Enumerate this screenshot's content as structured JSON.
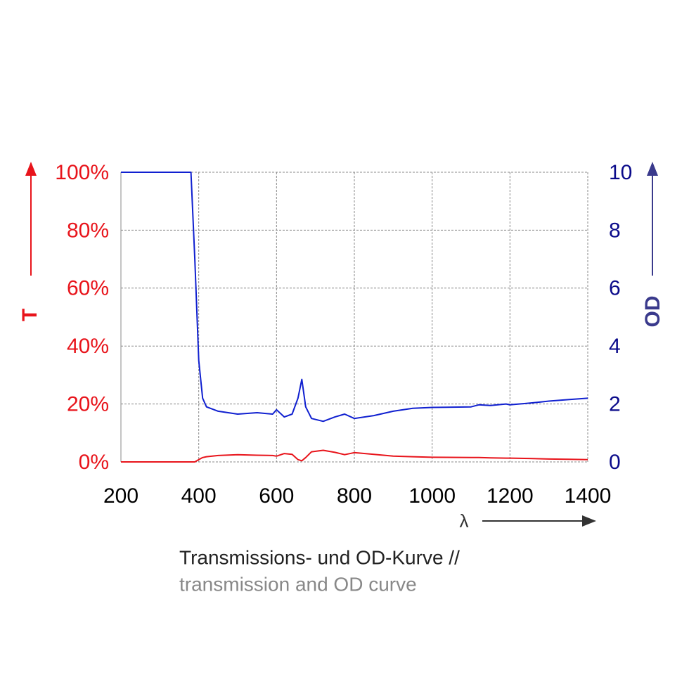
{
  "chart_data": {
    "type": "line",
    "x_label": "λ",
    "y_label": "T",
    "y2_label": "OD",
    "caption": [
      "Transmissions- und OD-Kurve //",
      "transmission and OD curve"
    ],
    "x": [
      200,
      300,
      380,
      390,
      400,
      410,
      420,
      450,
      500,
      550,
      590,
      600,
      620,
      640,
      655,
      665,
      675,
      690,
      720,
      750,
      775,
      800,
      850,
      900,
      950,
      1000,
      1100,
      1120,
      1150,
      1190,
      1200,
      1250,
      1300,
      1350,
      1400
    ],
    "series": [
      {
        "name": "T",
        "color": "#e8141b",
        "axis": "y",
        "values": [
          0,
          0,
          0,
          0,
          0.8,
          1.5,
          1.8,
          2.2,
          2.5,
          2.3,
          2.2,
          2.0,
          2.9,
          2.6,
          0.8,
          0.4,
          1.5,
          3.5,
          4.0,
          3.3,
          2.5,
          3.2,
          2.6,
          2.0,
          1.8,
          1.6,
          1.5,
          1.5,
          1.4,
          1.3,
          1.3,
          1.2,
          1.0,
          0.9,
          0.8
        ]
      },
      {
        "name": "OD",
        "color": "#1020d0",
        "axis": "y2",
        "values": [
          10,
          10,
          10,
          7,
          3.5,
          2.2,
          1.9,
          1.75,
          1.65,
          1.7,
          1.65,
          1.8,
          1.55,
          1.65,
          2.2,
          2.85,
          1.9,
          1.5,
          1.4,
          1.55,
          1.65,
          1.5,
          1.6,
          1.75,
          1.85,
          1.88,
          1.9,
          1.97,
          1.95,
          2.0,
          1.97,
          2.03,
          2.1,
          2.15,
          2.2
        ]
      }
    ],
    "xlim": [
      200,
      1400
    ],
    "xticks": [
      200,
      400,
      600,
      800,
      1000,
      1200,
      1400
    ],
    "ylim": [
      0,
      100
    ],
    "yticks": [
      {
        "value": 0,
        "label": "0%"
      },
      {
        "value": 20,
        "label": "20%"
      },
      {
        "value": 40,
        "label": "40%"
      },
      {
        "value": 60,
        "label": "60%"
      },
      {
        "value": 80,
        "label": "80%"
      },
      {
        "value": 100,
        "label": "100%"
      }
    ],
    "y2lim": [
      0,
      10
    ],
    "y2ticks": [
      0,
      2,
      4,
      6,
      8,
      10
    ],
    "grid": true
  }
}
